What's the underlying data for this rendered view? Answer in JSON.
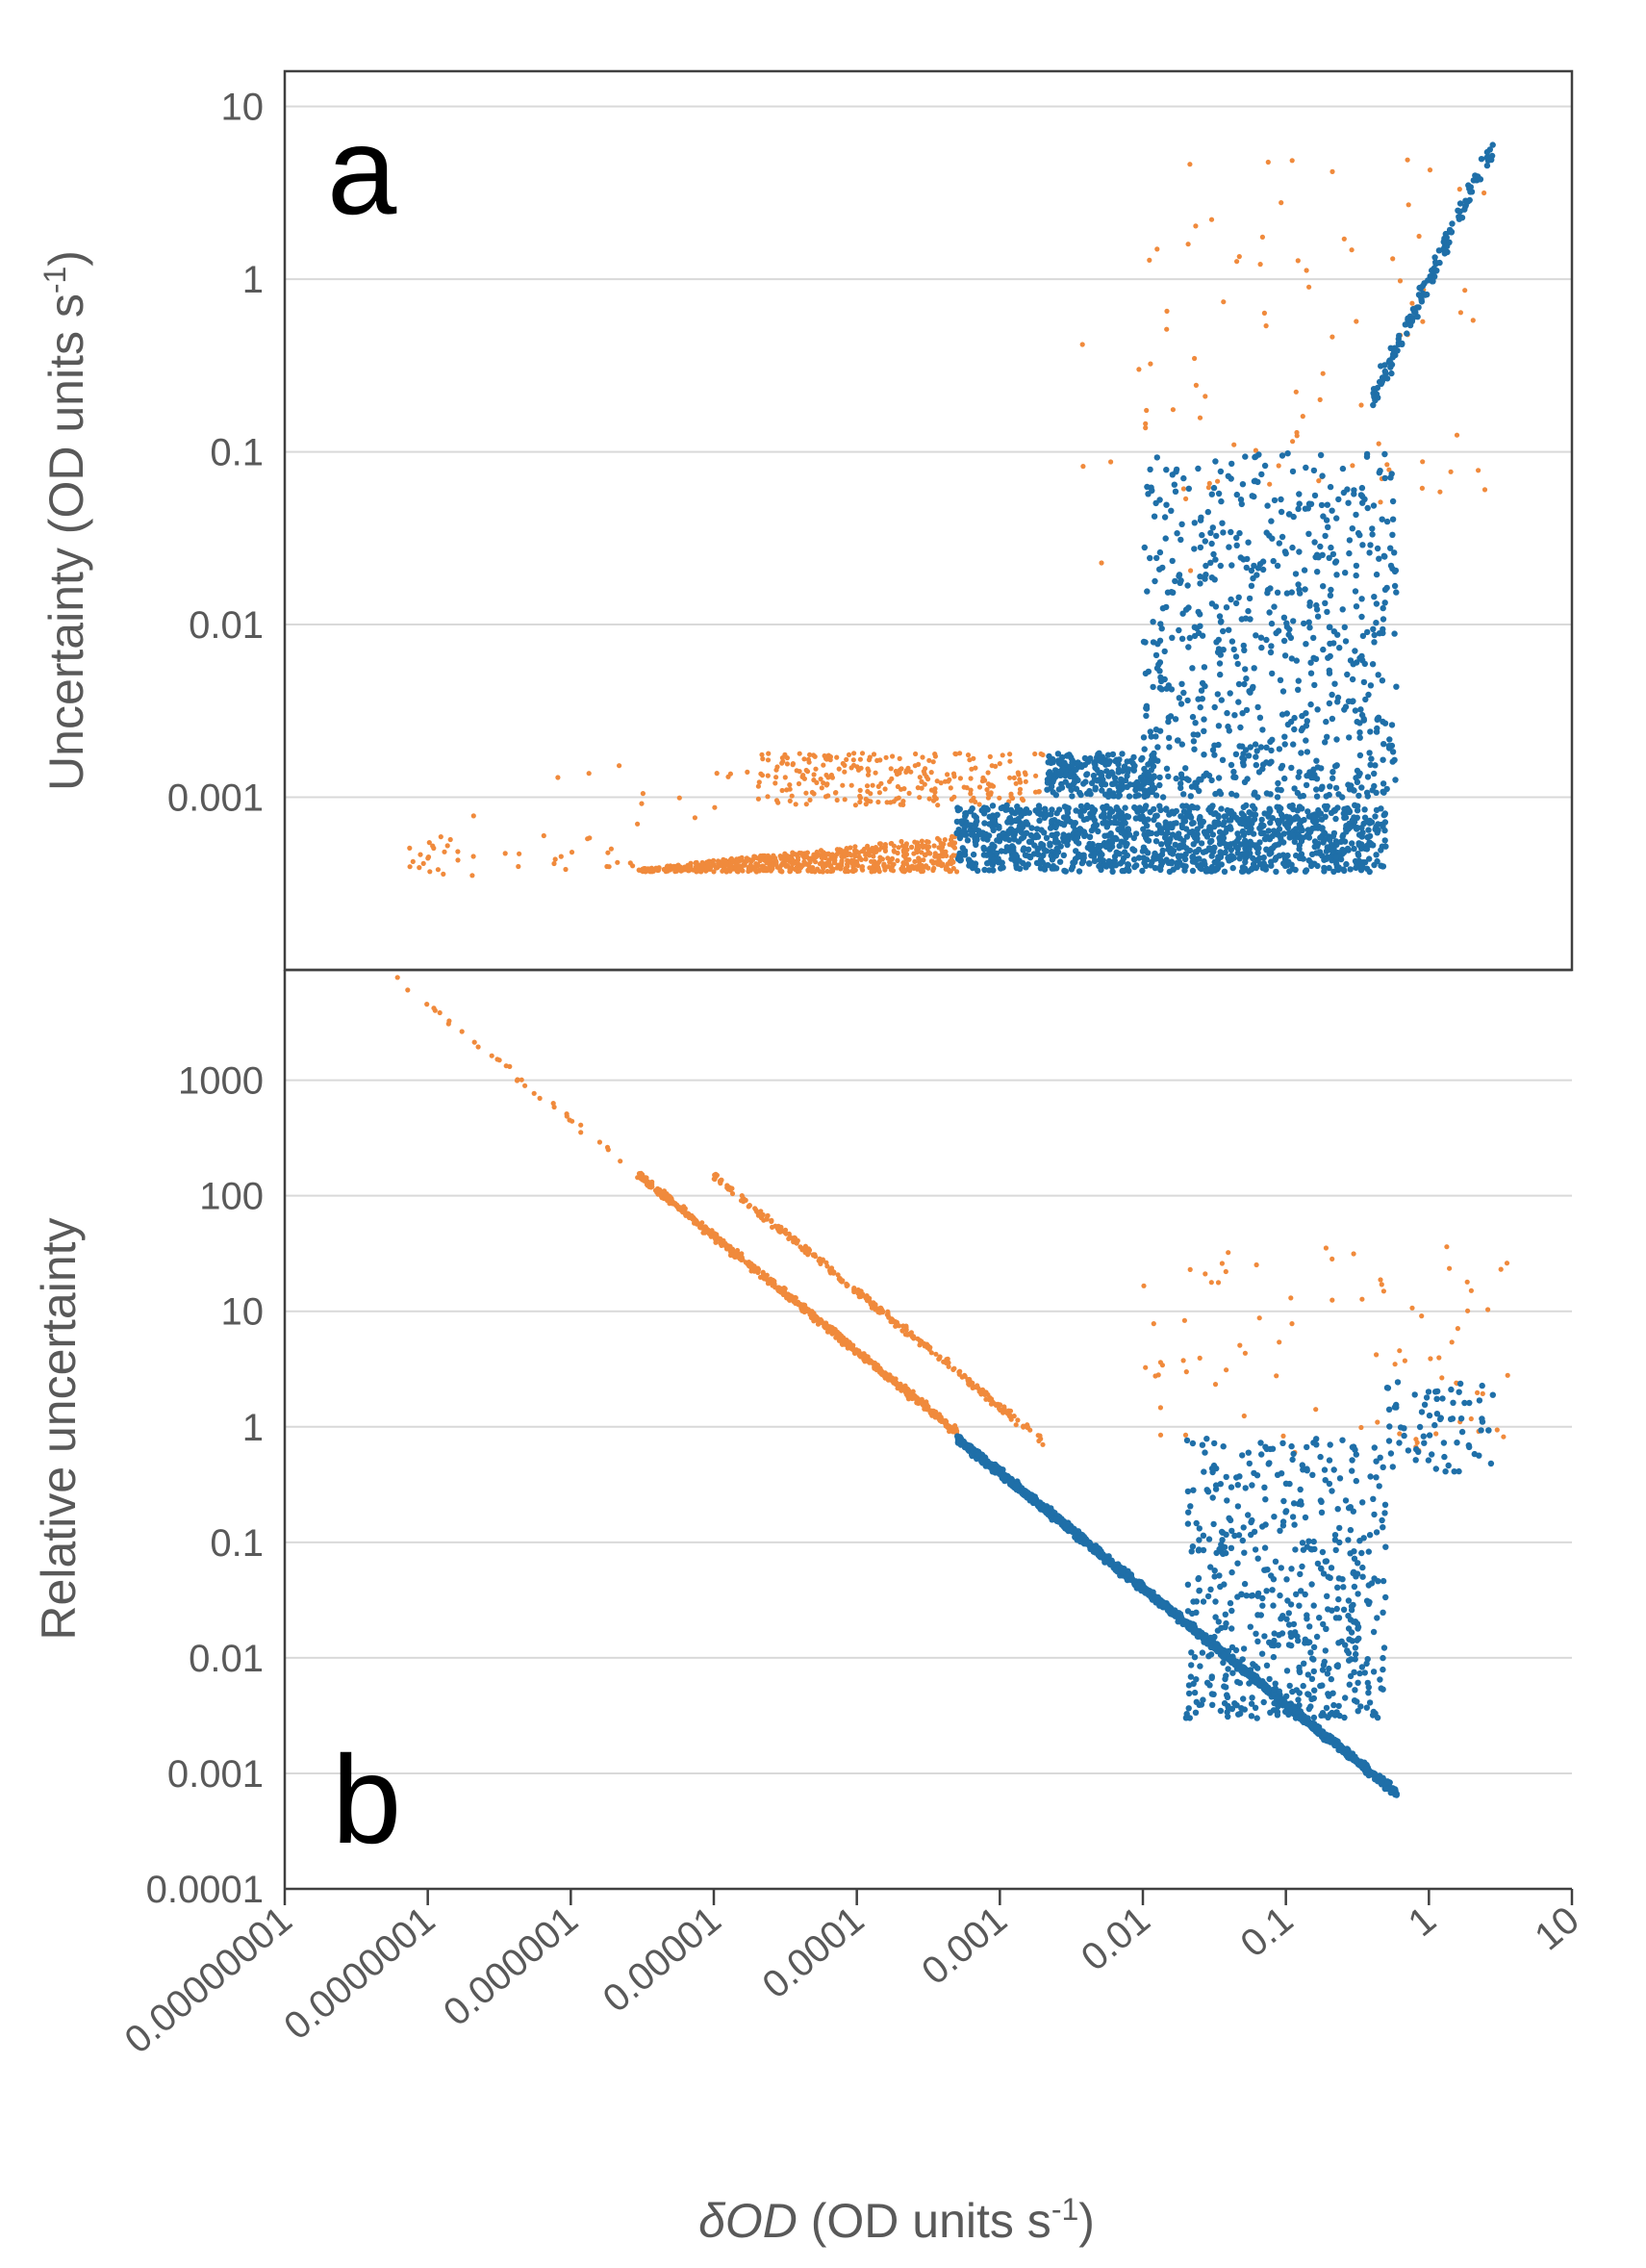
{
  "colors": {
    "series_orange": "#F08A3C",
    "series_blue": "#1F6FA8",
    "gridline": "#D9D9D9",
    "frame": "#404040",
    "text": "#595959"
  },
  "shared_x_axis": {
    "title_symbol": "δOD",
    "title_units": " (OD units s",
    "title_exp": "-1",
    "title_close": ")",
    "scale": "log",
    "xlim": [
      1e-08,
      10
    ],
    "tick_values": [
      1e-08,
      1e-07,
      1e-06,
      1e-05,
      0.0001,
      0.001,
      0.01,
      0.1,
      1,
      10
    ],
    "tick_labels": [
      "0.00000001",
      "0.0000001",
      "0.000001",
      "0.00001",
      "0.0001",
      "0.001",
      "0.01",
      "0.1",
      "1",
      "10"
    ]
  },
  "chart_data": [
    {
      "panel": "a",
      "type": "scatter",
      "title": "",
      "panel_label": "a",
      "xlabel": "δOD (OD units s-1)",
      "ylabel_main": "Uncertainty (OD units s",
      "ylabel_exp": "-1",
      "ylabel_close": ")",
      "xscale": "log",
      "yscale": "log",
      "xlim": [
        1e-08,
        10
      ],
      "ylim": [
        0.0001,
        16
      ],
      "y_tick_values": [
        0.001,
        0.01,
        0.1,
        1,
        10
      ],
      "y_tick_labels": [
        "0.001",
        "0.01",
        "0.1",
        "1",
        "10"
      ],
      "grid": true,
      "series": [
        {
          "name": "orange",
          "color": "#F08A3C",
          "clusters": [
            {
              "label": "lower band",
              "x_range": [
                3e-06,
                0.0005
              ],
              "y_range": [
                0.00037,
                0.0006
              ],
              "count": 650,
              "shape": "band",
              "trend_to": 0.0006
            },
            {
              "label": "lower band tail",
              "x_range": [
                6e-08,
                3e-06
              ],
              "y_range": [
                0.00035,
                0.0006
              ],
              "count": 40,
              "shape": "scatter"
            },
            {
              "label": "upper band",
              "x_range": [
                2e-05,
                0.002
              ],
              "y_range": [
                0.0009,
                0.0018
              ],
              "count": 260,
              "shape": "band"
            },
            {
              "label": "upper band sparse",
              "x_range": [
                2e-07,
                2e-05
              ],
              "y_range": [
                0.0006,
                0.0016
              ],
              "count": 14,
              "shape": "scatter"
            },
            {
              "label": "high-x outliers",
              "x_range": [
                0.01,
                2.5
              ],
              "y_range": [
                0.05,
                6
              ],
              "count": 80,
              "shape": "scatter"
            },
            {
              "label": "mid outliers",
              "x_range": [
                0.003,
                0.05
              ],
              "y_range": [
                0.02,
                0.8
              ],
              "count": 10,
              "shape": "scatter"
            }
          ]
        },
        {
          "name": "blue",
          "color": "#1F6FA8",
          "clusters": [
            {
              "label": "lower band",
              "x_range": [
                0.0005,
                0.5
              ],
              "y_range": [
                0.00037,
                0.0009
              ],
              "count": 1200,
              "shape": "band"
            },
            {
              "label": "upper band",
              "x_range": [
                0.002,
                0.012
              ],
              "y_range": [
                0.001,
                0.0018
              ],
              "count": 220,
              "shape": "band"
            },
            {
              "label": "rising wedge",
              "x_range": [
                0.01,
                0.6
              ],
              "y_range": [
                0.001,
                0.1
              ],
              "count": 700,
              "shape": "scatter"
            },
            {
              "label": "steep tail",
              "x_range": [
                0.4,
                2.8
              ],
              "y_range": [
                0.2,
                6
              ],
              "count": 140,
              "shape": "diagonal"
            }
          ]
        }
      ]
    },
    {
      "panel": "b",
      "type": "scatter",
      "title": "",
      "panel_label": "b",
      "xlabel": "δOD (OD units s-1)",
      "ylabel": "Relative uncertainty",
      "xscale": "log",
      "yscale": "log",
      "xlim": [
        1e-08,
        10
      ],
      "ylim": [
        0.0001,
        9000
      ],
      "y_tick_values": [
        0.0001,
        0.001,
        0.01,
        0.1,
        1,
        10,
        100,
        1000
      ],
      "y_tick_labels": [
        "0.0001",
        "0.001",
        "0.01",
        "0.1",
        "1",
        "10",
        "100",
        "1000"
      ],
      "grid": true,
      "series": [
        {
          "name": "orange",
          "color": "#F08A3C",
          "clusters": [
            {
              "label": "lower diagonal",
              "x_range": [
                3e-06,
                0.0005
              ],
              "relation": "y = 0.00045 / x",
              "count": 750,
              "shape": "diagonal"
            },
            {
              "label": "upper diagonal",
              "x_range": [
                1e-05,
                0.002
              ],
              "relation": "y = 0.0015 / x",
              "count": 280,
              "shape": "diagonal"
            },
            {
              "label": "high start",
              "x_range": [
                6e-08,
                3e-06
              ],
              "relation": "y = 0.00045 / x",
              "count": 35,
              "shape": "diagonal"
            },
            {
              "label": "outliers",
              "x_range": [
                0.01,
                4.5
              ],
              "y_range": [
                0.6,
                40
              ],
              "count": 80,
              "shape": "scatter"
            }
          ]
        },
        {
          "name": "blue",
          "color": "#1F6FA8",
          "clusters": [
            {
              "label": "diagonal band",
              "x_range": [
                0.0005,
                0.6
              ],
              "relation": "y = 0.0004..0.0015 / x",
              "count": 1700,
              "shape": "diagonal"
            },
            {
              "label": "scatter wedge",
              "x_range": [
                0.02,
                0.5
              ],
              "y_range": [
                0.003,
                0.8
              ],
              "count": 550,
              "shape": "scatter"
            },
            {
              "label": "high-x group",
              "x_range": [
                0.5,
                2.8
              ],
              "y_range": [
                0.4,
                2.5
              ],
              "count": 70,
              "shape": "scatter"
            }
          ]
        }
      ]
    }
  ]
}
